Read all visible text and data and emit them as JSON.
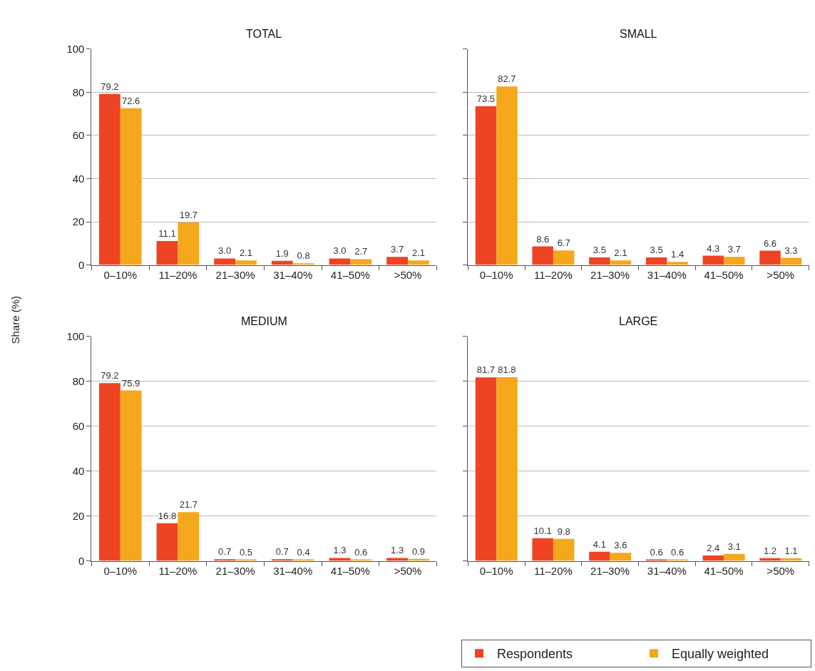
{
  "chart_data": [
    {
      "type": "bar",
      "title": "TOTAL",
      "ylabel": "Share (%)",
      "categories": [
        "0–10%",
        "11–20%",
        "21–30%",
        "31–40%",
        "41–50%",
        ">50%"
      ],
      "ylim": [
        0,
        100
      ],
      "yticks": [
        0,
        20,
        40,
        60,
        80,
        100
      ],
      "grid": "y",
      "legend": "bottom right",
      "series": [
        {
          "name": "Respondents",
          "color": "#ee4423",
          "values": [
            79.2,
            11.1,
            3.0,
            1.9,
            3.0,
            3.7
          ],
          "value_labels": [
            "79.2",
            "11.1",
            "3.0",
            "1.9",
            "3.0",
            "3.7"
          ]
        },
        {
          "name": "Equally weighted",
          "color": "#f5a81c",
          "values": [
            72.6,
            19.7,
            2.1,
            0.8,
            2.7,
            2.1
          ],
          "value_labels": [
            "72.6",
            "19.7",
            "2.1",
            "0.8",
            "2.7",
            "2.1"
          ]
        }
      ]
    },
    {
      "type": "bar",
      "title": "SMALL",
      "categories": [
        "0–10%",
        "11–20%",
        "21–30%",
        "31–40%",
        "41–50%",
        ">50%"
      ],
      "ylim": [
        0,
        100
      ],
      "yticks": [
        0,
        20,
        40,
        60,
        80,
        100
      ],
      "grid": "y",
      "tick_labels": "x",
      "series": [
        {
          "color": "#ee4423",
          "values": [
            73.5,
            8.6,
            3.5,
            3.5,
            4.3,
            6.6
          ],
          "value_labels": [
            "73.5",
            "8.6",
            "3.5",
            "3.5",
            "4.3",
            "6.6"
          ]
        },
        {
          "color": "#f5a81c",
          "values": [
            82.7,
            6.7,
            2.1,
            1.4,
            3.7,
            3.3
          ],
          "value_labels": [
            "82.7",
            "6.7",
            "2.1",
            "1.4",
            "3.7",
            "3.3"
          ]
        }
      ]
    },
    {
      "type": "bar",
      "title": "MEDIUM",
      "categories": [
        "0–10%",
        "11–20%",
        "21–30%",
        "31–40%",
        "41–50%",
        ">50%"
      ],
      "ylim": [
        0,
        100
      ],
      "yticks": [
        0,
        20,
        40,
        60,
        80,
        100
      ],
      "grid": "y",
      "series": [
        {
          "color": "#ee4423",
          "values": [
            79.2,
            16.8,
            0.7,
            0.7,
            1.3,
            1.3
          ],
          "value_labels": [
            "79.2",
            "16.8",
            "0.7",
            "0.7",
            "1.3",
            "1.3"
          ]
        },
        {
          "color": "#f5a81c",
          "values": [
            75.9,
            21.7,
            0.5,
            0.4,
            0.6,
            0.9
          ],
          "value_labels": [
            "75.9",
            "21.7",
            "0.5",
            "0.4",
            "0.6",
            "0.9"
          ]
        }
      ]
    },
    {
      "type": "bar",
      "title": "LARGE",
      "categories": [
        "0–10%",
        "11–20%",
        "21–30%",
        "31–40%",
        "41–50%",
        ">50%"
      ],
      "ylim": [
        0,
        100
      ],
      "yticks": [
        0,
        20,
        40,
        60,
        80,
        100
      ],
      "grid": "y",
      "tick_labels": "x",
      "series": [
        {
          "color": "#ee4423",
          "values": [
            81.7,
            10.1,
            4.1,
            0.6,
            2.4,
            1.2
          ],
          "value_labels": [
            "81.7",
            "10.1",
            "4.1",
            "0.6",
            "2.4",
            "1.2"
          ]
        },
        {
          "color": "#f5a81c",
          "values": [
            81.8,
            9.8,
            3.6,
            0.6,
            3.1,
            1.1
          ],
          "value_labels": [
            "81.8",
            "9.8",
            "3.6",
            "0.6",
            "3.1",
            "1.1"
          ]
        }
      ]
    }
  ]
}
